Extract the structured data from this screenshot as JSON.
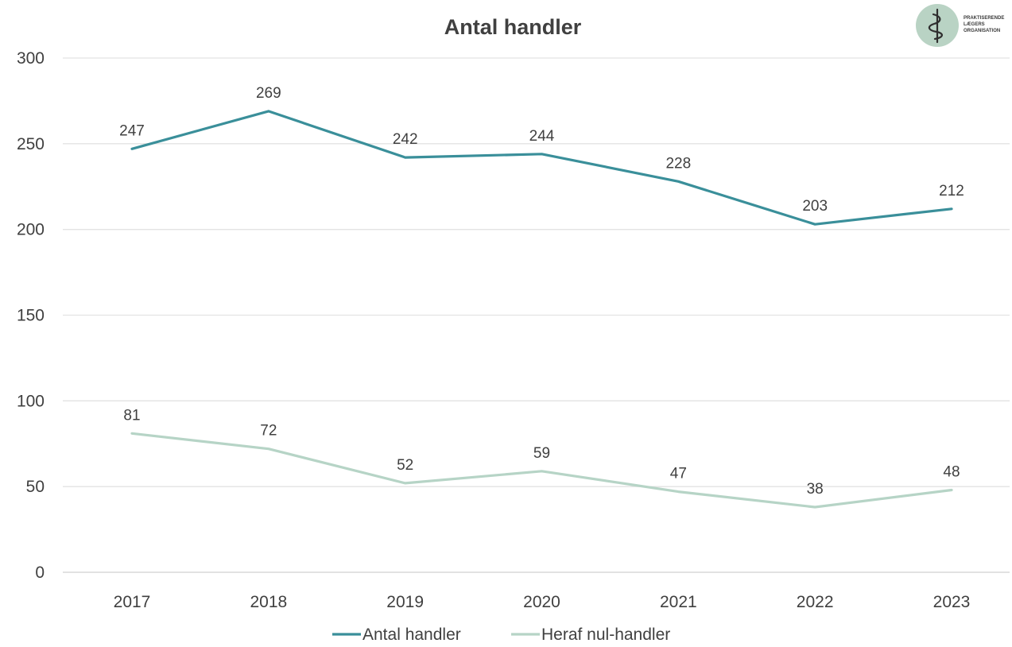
{
  "chart_data": {
    "type": "line",
    "title": "Antal handler",
    "xlabel": "",
    "ylabel": "",
    "categories": [
      "2017",
      "2018",
      "2019",
      "2020",
      "2021",
      "2022",
      "2023"
    ],
    "ylim": [
      0,
      300
    ],
    "yticks": [
      0,
      50,
      100,
      150,
      200,
      250,
      300
    ],
    "grid": true,
    "legend_position": "bottom",
    "series": [
      {
        "name": "Antal handler",
        "color": "#3a8f9a",
        "values": [
          247,
          269,
          242,
          244,
          228,
          203,
          212
        ]
      },
      {
        "name": "Heraf nul-handler",
        "color": "#b6d4c6",
        "values": [
          81,
          72,
          52,
          59,
          47,
          38,
          48
        ]
      }
    ]
  },
  "logo": {
    "icon": "caduceus-icon",
    "circle_color": "#b9d3c4",
    "lines": [
      "PRAKTISERENDE",
      "LÆGERS",
      "ORGANISATION"
    ]
  }
}
